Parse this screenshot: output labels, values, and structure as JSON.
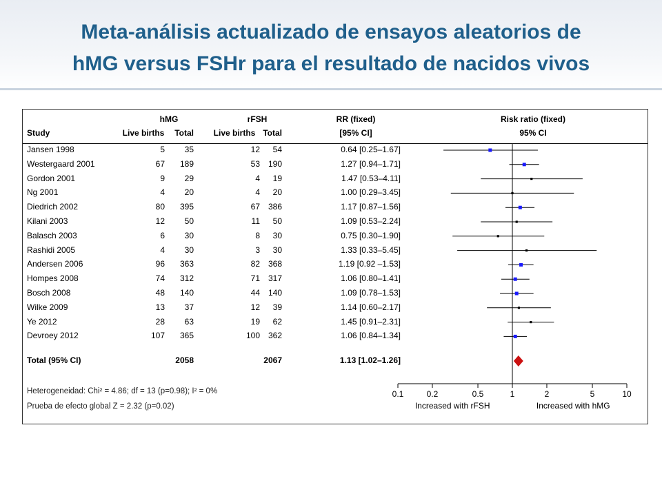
{
  "title": {
    "line1": "Meta-análisis actualizado de ensayos aleatorios de",
    "line2": "hMG versus FSHr para el resultado de nacidos vivos"
  },
  "headers": {
    "hmg": "hMG",
    "rfsh": "rFSH",
    "rr": "RR (fixed)",
    "risk": "Risk ratio (fixed)",
    "study": "Study",
    "live1": "Live births",
    "total1": "Total",
    "live2": "Live births",
    "total2": "Total",
    "ci": "[95% CI]",
    "ci2": "95% CI"
  },
  "footer": {
    "heterogeneity": "Heterogeneidad: Chi² = 4.86;  df = 13 (p=0.98); I² = 0%",
    "overall": "Prueba de efecto global Z = 2.32  (p=0.02)"
  },
  "chart_data": {
    "type": "forest",
    "x_scale": "log",
    "x_ticks": [
      "0.1",
      "0.2",
      "0.5",
      "1",
      "2",
      "5",
      "10"
    ],
    "xlabel_left": "Increased with rFSH",
    "xlabel_right": "Increased with hMG",
    "studies": [
      {
        "name": "Jansen 1998",
        "hmg_births": "5",
        "hmg_total": "35",
        "rfsh_births": "12",
        "rfsh_total": "54",
        "rr_text": "0.64 [0.25–1.67]",
        "rr": 0.64,
        "lo": 0.25,
        "hi": 1.67,
        "color": "#1a1aff"
      },
      {
        "name": "Westergaard 2001",
        "hmg_births": "67",
        "hmg_total": "189",
        "rfsh_births": "53",
        "rfsh_total": "190",
        "rr_text": "1.27 [0.94–1.71]",
        "rr": 1.27,
        "lo": 0.94,
        "hi": 1.71,
        "color": "#1a1aff"
      },
      {
        "name": "Gordon 2001",
        "hmg_births": "9",
        "hmg_total": "29",
        "rfsh_births": "4",
        "rfsh_total": "19",
        "rr_text": "1.47 [0.53–4.11]",
        "rr": 1.47,
        "lo": 0.53,
        "hi": 4.11,
        "color": "#000000"
      },
      {
        "name": "Ng 2001",
        "hmg_births": "4",
        "hmg_total": "20",
        "rfsh_births": "4",
        "rfsh_total": "20",
        "rr_text": "1.00 [0.29–3.45]",
        "rr": 1.0,
        "lo": 0.29,
        "hi": 3.45,
        "color": "#000000"
      },
      {
        "name": "Diedrich 2002",
        "hmg_births": "80",
        "hmg_total": "395",
        "rfsh_births": "67",
        "rfsh_total": "386",
        "rr_text": "1.17 [0.87–1.56]",
        "rr": 1.17,
        "lo": 0.87,
        "hi": 1.56,
        "color": "#1a1aff"
      },
      {
        "name": "Kilani 2003",
        "hmg_births": "12",
        "hmg_total": "50",
        "rfsh_births": "11",
        "rfsh_total": "50",
        "rr_text": "1.09 [0.53–2.24]",
        "rr": 1.09,
        "lo": 0.53,
        "hi": 2.24,
        "color": "#000000"
      },
      {
        "name": "Balasch 2003",
        "hmg_births": "6",
        "hmg_total": "30",
        "rfsh_births": "8",
        "rfsh_total": "30",
        "rr_text": "0.75 [0.30–1.90]",
        "rr": 0.75,
        "lo": 0.3,
        "hi": 1.9,
        "color": "#000000"
      },
      {
        "name": "Rashidi 2005",
        "hmg_births": "4",
        "hmg_total": "30",
        "rfsh_births": "3",
        "rfsh_total": "30",
        "rr_text": "1.33 [0.33–5.45]",
        "rr": 1.33,
        "lo": 0.33,
        "hi": 5.45,
        "color": "#000000"
      },
      {
        "name": "Andersen 2006",
        "hmg_births": "96",
        "hmg_total": "363",
        "rfsh_births": "82",
        "rfsh_total": "368",
        "rr_text": "1.19 [0.92 –1.53]",
        "rr": 1.19,
        "lo": 0.92,
        "hi": 1.53,
        "color": "#1a1aff"
      },
      {
        "name": "Hompes 2008",
        "hmg_births": "74",
        "hmg_total": "312",
        "rfsh_births": "71",
        "rfsh_total": "317",
        "rr_text": "1.06 [0.80–1.41]",
        "rr": 1.06,
        "lo": 0.8,
        "hi": 1.41,
        "color": "#1a1aff"
      },
      {
        "name": "Bosch 2008",
        "hmg_births": "48",
        "hmg_total": "140",
        "rfsh_births": "44",
        "rfsh_total": "140",
        "rr_text": "1.09 [0.78–1.53]",
        "rr": 1.09,
        "lo": 0.78,
        "hi": 1.53,
        "color": "#1a1aff"
      },
      {
        "name": "Wilke 2009",
        "hmg_births": "13",
        "hmg_total": "37",
        "rfsh_births": "12",
        "rfsh_total": "39",
        "rr_text": "1.14 [0.60–2.17]",
        "rr": 1.14,
        "lo": 0.6,
        "hi": 2.17,
        "color": "#000000"
      },
      {
        "name": "Ye 2012",
        "hmg_births": "28",
        "hmg_total": "63",
        "rfsh_births": "19",
        "rfsh_total": "62",
        "rr_text": "1.45 [0.91–2.31]",
        "rr": 1.45,
        "lo": 0.91,
        "hi": 2.31,
        "color": "#000000"
      },
      {
        "name": "Devroey 2012",
        "hmg_births": "107",
        "hmg_total": "365",
        "rfsh_births": "100",
        "rfsh_total": "362",
        "rr_text": "1.06 [0.84–1.34]",
        "rr": 1.06,
        "lo": 0.84,
        "hi": 1.34,
        "color": "#1a1aff"
      }
    ],
    "total": {
      "label": "Total (95% CI)",
      "hmg_total": "2058",
      "rfsh_total": "2067",
      "rr_text": "1.13 [1.02–1.26]",
      "rr": 1.13,
      "lo": 1.02,
      "hi": 1.26,
      "color": "#cc1111"
    }
  }
}
